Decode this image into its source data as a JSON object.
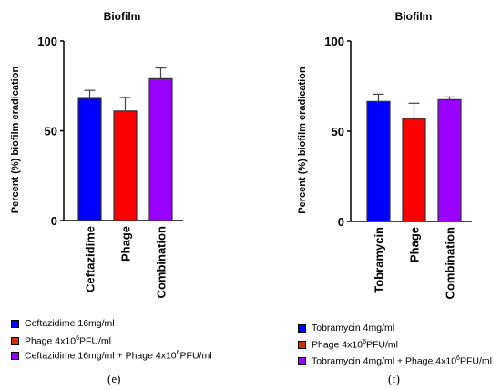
{
  "chart_data": [
    {
      "type": "bar",
      "panel": "(e)",
      "title": "Biofilm",
      "ylabel": "Percent (%) biofilm eradication",
      "ylim": [
        0,
        100
      ],
      "yticks": [
        "0",
        "50",
        "100"
      ],
      "categories": [
        "Ceftazidime",
        "Phage",
        "Combination"
      ],
      "values": [
        68,
        61,
        79
      ],
      "errors": [
        4.5,
        7.5,
        6
      ],
      "colors": [
        "#0000ff",
        "#ff0000",
        "#9900ff"
      ],
      "legend": [
        {
          "color": "#0000ff",
          "pre": "Ceftazidime 16mg/ml",
          "sup": "",
          "post": ""
        },
        {
          "color": "#cc3300",
          "pre": "Phage 4x10",
          "sup": "6",
          "post": "PFU/ml"
        },
        {
          "color": "#9900ff",
          "pre": "Ceftazidime 16mg/ml + Phage 4x10",
          "sup": "6",
          "post": "PFU/ml"
        }
      ]
    },
    {
      "type": "bar",
      "panel": "(f)",
      "title": "Biofilm",
      "ylabel": "Percent (%) biofilm eradication",
      "ylim": [
        0,
        100
      ],
      "yticks": [
        "0",
        "50",
        "100"
      ],
      "categories": [
        "Tobramycin",
        "Phage",
        "Combination"
      ],
      "values": [
        66.5,
        57,
        67.5
      ],
      "errors": [
        4,
        8.5,
        1.5
      ],
      "colors": [
        "#0000ff",
        "#ff0000",
        "#9900ff"
      ],
      "legend": [
        {
          "color": "#0000ff",
          "pre": "Tobramycin 4mg/ml",
          "sup": "",
          "post": ""
        },
        {
          "color": "#cc3300",
          "pre": "Phage 4x10",
          "sup": "6",
          "post": "PFU/ml"
        },
        {
          "color": "#9900ff",
          "pre": "Tobramycin 4mg/ml + Phage 4x10",
          "sup": "6",
          "post": "PFU/ml"
        }
      ]
    }
  ]
}
